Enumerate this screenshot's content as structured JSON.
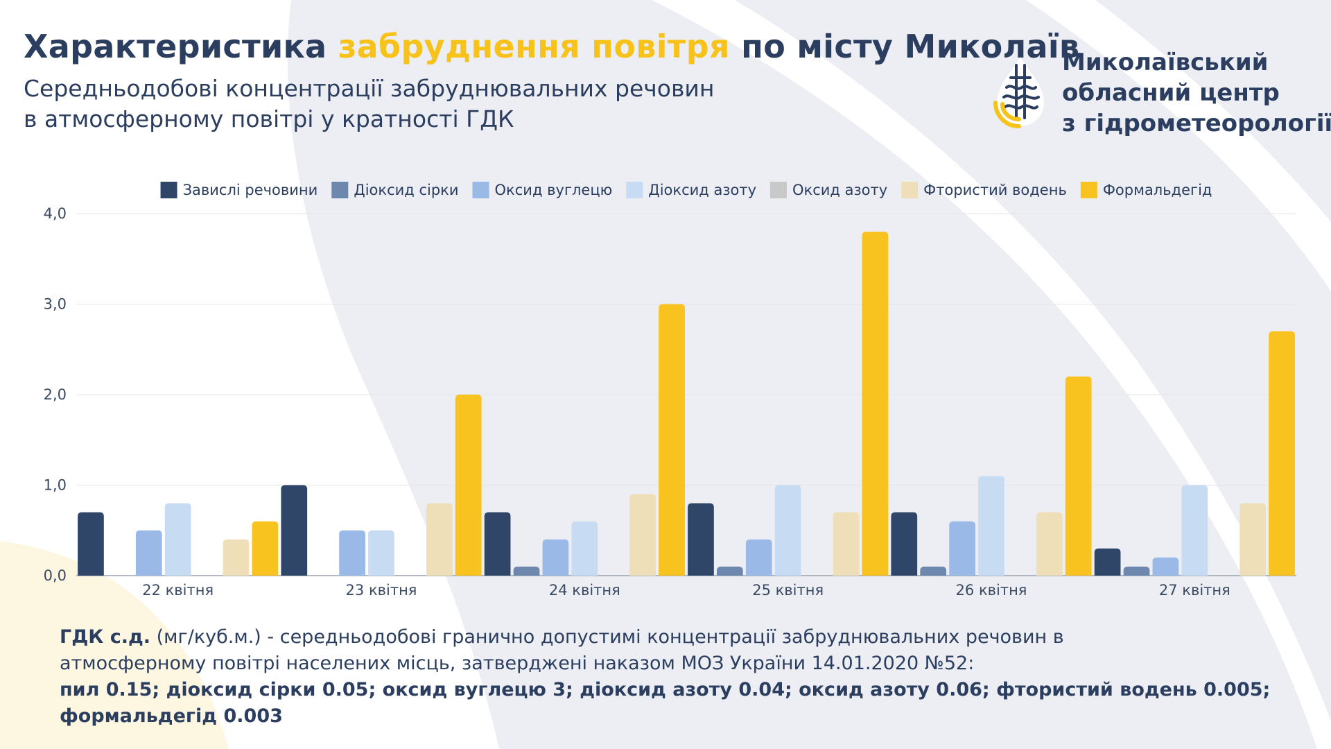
{
  "header": {
    "title_part1": "Характеристика ",
    "title_accent": "забруднення повітря",
    "title_part2": " по місту Миколаїв",
    "subtitle_line1": "Середньодобові концентрації забруднювальних речовин",
    "subtitle_line2": "в атмосферному повітрі у кратності ГДК"
  },
  "organization": {
    "name_line1": "Миколаївський",
    "name_line2": "обласний центр",
    "name_line3": "з гідрометеорології"
  },
  "colors": {
    "text": "#2b3e5f",
    "accent": "#f7c21a",
    "background_shape": "#eceef3",
    "background_yellow": "#fdf6e0"
  },
  "chart_data": {
    "type": "bar",
    "categories": [
      "22 квітня",
      "23 квітня",
      "24 квітня",
      "25 квітня",
      "26 квітня",
      "27 квітня"
    ],
    "series": [
      {
        "name": "Завислі речовини",
        "color": "#2f4668",
        "values": [
          0.7,
          1.0,
          0.7,
          0.8,
          0.7,
          0.3
        ]
      },
      {
        "name": "Діоксид сірки",
        "color": "#6e88ad",
        "values": [
          0.0,
          0.0,
          0.1,
          0.1,
          0.1,
          0.1
        ]
      },
      {
        "name": "Оксид вуглецю",
        "color": "#9ab9e6",
        "values": [
          0.5,
          0.5,
          0.4,
          0.4,
          0.6,
          0.2
        ]
      },
      {
        "name": "Діоксид азоту",
        "color": "#c7dbf3",
        "values": [
          0.8,
          0.5,
          0.6,
          1.0,
          1.1,
          1.0
        ]
      },
      {
        "name": "Оксид азоту",
        "color": "#c9c9c9",
        "values": [
          0.0,
          0.0,
          0.0,
          0.0,
          0.0,
          0.0
        ]
      },
      {
        "name": "Фтористий водень",
        "color": "#eedfb8",
        "values": [
          0.4,
          0.8,
          0.9,
          0.7,
          0.7,
          0.8
        ]
      },
      {
        "name": "Формальдегід",
        "color": "#f9c31f",
        "values": [
          0.6,
          2.0,
          3.0,
          3.8,
          2.2,
          2.7
        ]
      }
    ],
    "y_ticks": [
      "0,0",
      "1,0",
      "2,0",
      "3,0",
      "4,0"
    ],
    "ylim": [
      0,
      4
    ],
    "grid": true,
    "legend_position": "top"
  },
  "footnote": {
    "term": "ГДК с.д.",
    "line1_rest": " (мг/куб.м.) - середньодобові гранично допустимі концентрації забруднювальних речовин в",
    "line2": "атмосферному повітрі населених місць, затверджені наказом МОЗ України 14.01.2020 №52:",
    "line3": "пил 0.15; діоксид сірки 0.05; оксид вуглецю 3; діоксид азоту 0.04; оксид азоту 0.06; фтористий водень 0.005;",
    "line4": "формальдегід 0.003"
  }
}
